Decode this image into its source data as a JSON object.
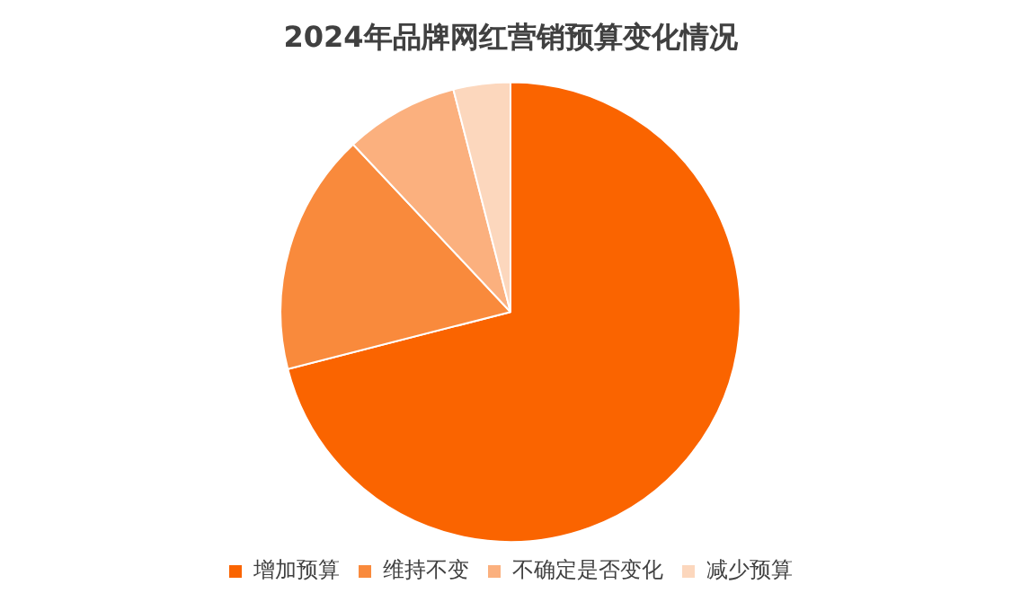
{
  "chart_data": {
    "type": "pie",
    "title": "2024年品牌网红营销预算变化情况",
    "categories": [
      "增加预算",
      "维持不变",
      "不确定是否变化",
      "减少预算"
    ],
    "values": [
      71,
      17,
      8,
      4
    ],
    "colors": [
      "#fa6400",
      "#f98a3c",
      "#fbb07e",
      "#fcd7bd"
    ],
    "legend": "bottom"
  }
}
